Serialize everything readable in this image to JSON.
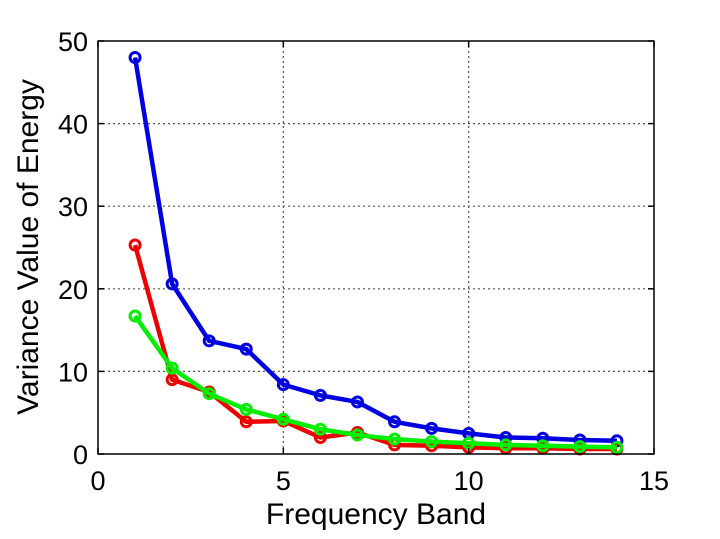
{
  "chart_data": {
    "type": "line",
    "title": "",
    "xlabel": "Frequency Band",
    "ylabel": "Variance Value of Energy",
    "xlim": [
      0,
      15
    ],
    "ylim": [
      0,
      50
    ],
    "xticks": [
      0,
      5,
      10,
      15
    ],
    "yticks": [
      0,
      10,
      20,
      30,
      40,
      50
    ],
    "grid": true,
    "legend": "none",
    "marker": "circle",
    "x": [
      1,
      2,
      3,
      4,
      5,
      6,
      7,
      8,
      9,
      10,
      11,
      12,
      13,
      14
    ],
    "series": [
      {
        "color": "#0000e0",
        "values": [
          48,
          20.6,
          13.7,
          12.7,
          8.4,
          7.1,
          6.3,
          3.9,
          3.1,
          2.5,
          2.0,
          1.9,
          1.7,
          1.6
        ]
      },
      {
        "color": "#ee0000",
        "values": [
          25.3,
          9.0,
          7.5,
          3.9,
          4.0,
          2.0,
          2.6,
          1.1,
          1.0,
          0.8,
          0.7,
          0.7,
          0.6,
          0.6
        ]
      },
      {
        "color": "#00ee00",
        "values": [
          16.7,
          10.4,
          7.3,
          5.4,
          4.2,
          3.0,
          2.3,
          1.8,
          1.5,
          1.3,
          1.1,
          1.0,
          0.9,
          0.8
        ]
      }
    ]
  }
}
